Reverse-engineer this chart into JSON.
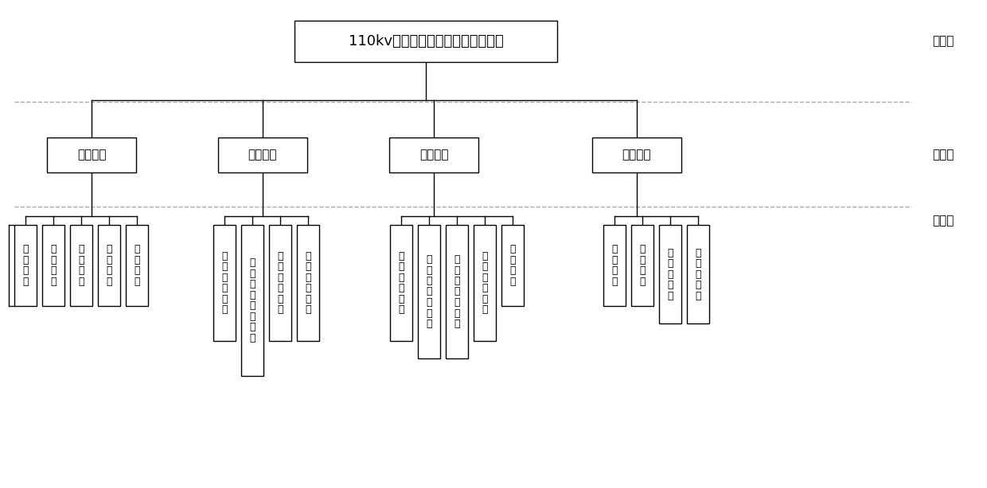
{
  "title": "110kv变电站设计阶段消防控制体系",
  "layer_labels": [
    "目标层",
    "准则层",
    "指标层"
  ],
  "level2_nodes": [
    "建筑布局",
    "结构选材",
    "消防给水",
    "应急设施"
  ],
  "level3_groups": [
    [
      "防火间距",
      "防火分区",
      "消防道路",
      "转弯半径",
      "消防通道"
    ],
    [
      "梁的耐火极限",
      "屋面板的耐火极限",
      "柱的耐火极限",
      "墙的耐火极限"
    ],
    [
      "市政给水来源",
      "室内消火栓数量",
      "室外消火栓数量",
      "消防水池体积",
      "水箱体积"
    ],
    [
      "应急照明",
      "消防报警",
      "安消防联动",
      "化学灭火器"
    ]
  ],
  "bold_nodes": [
    "室内消火栓数量",
    "室外消火栓数量"
  ],
  "bg_color": "#ffffff",
  "box_color": "#000000",
  "text_color": "#000000",
  "line_color": "#000000",
  "dash_color": "#aaaaaa",
  "label_color": "#000000",
  "fig_w": 12.4,
  "fig_h": 6.14,
  "dpi": 100
}
